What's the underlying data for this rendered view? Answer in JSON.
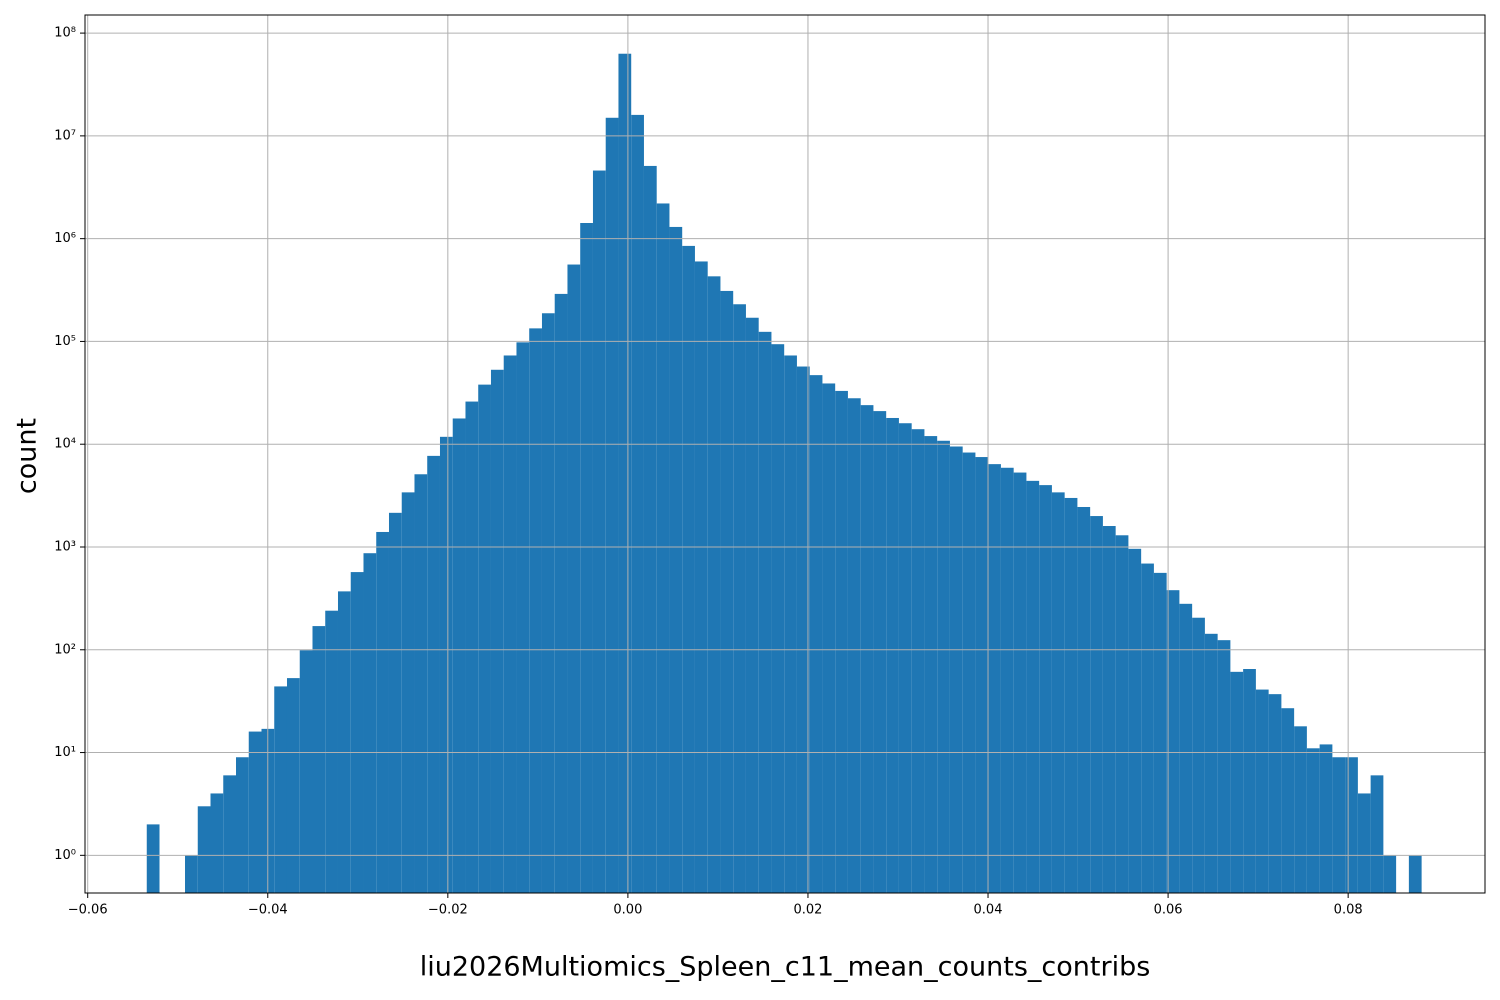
{
  "chart_data": {
    "type": "histogram",
    "xlabel": "liu2026Multiomics_Spleen_c11_mean_counts_contribs",
    "ylabel": "count",
    "color": "#1f77b4",
    "log_y": true,
    "grid": true,
    "bins": [
      -0.05344,
      -0.052024,
      -0.050608,
      -0.049192,
      -0.047776,
      -0.04636,
      -0.044944,
      -0.043528,
      -0.042112,
      -0.040696,
      -0.03928,
      -0.037864,
      -0.036448,
      -0.035032,
      -0.033616,
      -0.0322,
      -0.030784,
      -0.029368,
      -0.027952,
      -0.026536,
      -0.02512,
      -0.023704,
      -0.022288,
      -0.020872,
      -0.019456,
      -0.01804,
      -0.016624,
      -0.015208,
      -0.013792,
      -0.012376,
      -0.01096,
      -0.009544,
      -0.008128,
      -0.006712,
      -0.005296,
      -0.00388,
      -0.002464,
      -0.001048,
      0.000368,
      0.001784,
      0.0032,
      0.004616,
      0.006032,
      0.007448,
      0.008864,
      0.01028,
      0.011696,
      0.013112,
      0.014528,
      0.015944,
      0.01736,
      0.018776,
      0.020192,
      0.021608,
      0.023024,
      0.02444,
      0.025856,
      0.027272,
      0.028688,
      0.030104,
      0.03152,
      0.032936,
      0.034352,
      0.035768,
      0.037184,
      0.0386,
      0.040016,
      0.041432,
      0.042848,
      0.044264,
      0.04568,
      0.047096,
      0.048512,
      0.049928,
      0.051344,
      0.05276,
      0.054176,
      0.055592,
      0.057008,
      0.058424,
      0.05984,
      0.061256,
      0.062672,
      0.064088,
      0.065504,
      0.06692,
      0.068336,
      0.069752,
      0.071168,
      0.072584,
      0.074,
      0.075416,
      0.076832,
      0.078248,
      0.079664,
      0.08108,
      0.082496,
      0.083912,
      0.085328,
      0.086744,
      0.08816
    ],
    "counts": [
      2,
      0,
      0,
      1,
      3,
      4,
      6,
      9,
      16,
      17,
      44,
      53,
      99,
      170,
      240,
      370,
      570,
      870,
      1400,
      2150,
      3400,
      5100,
      7700,
      11800,
      17800,
      26000,
      38000,
      53000,
      73000,
      98000,
      134000,
      188000,
      290000,
      560000,
      1420000,
      4600000,
      15000000,
      63000000,
      16000000,
      5100000,
      2200000,
      1300000,
      850000,
      600000,
      430000,
      310000,
      230000,
      170000,
      124000,
      94000,
      73000,
      57000,
      47000,
      39000,
      33000,
      28000,
      24000,
      21000,
      18000,
      16000,
      14000,
      12000,
      10800,
      9500,
      8300,
      7500,
      6400,
      5900,
      5300,
      4400,
      4000,
      3400,
      3000,
      2450,
      2000,
      1600,
      1300,
      960,
      690,
      560,
      380,
      280,
      205,
      143,
      124,
      61,
      65,
      41,
      37,
      27,
      18,
      11,
      12,
      9,
      9,
      4,
      6,
      1,
      0,
      1
    ],
    "xlim": [
      -0.0603,
      0.0952
    ],
    "ylim": [
      0.43,
      150000000
    ],
    "xticks": [
      {
        "value": -0.06,
        "label": "−0.06"
      },
      {
        "value": -0.04,
        "label": "−0.04"
      },
      {
        "value": -0.02,
        "label": "−0.02"
      },
      {
        "value": 0,
        "label": "0.00"
      },
      0.02,
      0.04,
      0.06,
      0.08
    ],
    "yticks": [
      {
        "value": 1,
        "label": "10⁰"
      },
      {
        "value": 10,
        "label": "10¹"
      },
      {
        "value": 100,
        "label": "10²"
      },
      {
        "value": 1000,
        "label": "10³"
      },
      {
        "value": 10000,
        "label": "10⁴"
      },
      {
        "value": 100000,
        "label": "10⁵"
      },
      {
        "value": 1000000,
        "label": "10⁶"
      },
      {
        "value": 10000000,
        "label": "10⁷"
      },
      {
        "value": 100000000,
        "label": "10⁸"
      }
    ]
  }
}
